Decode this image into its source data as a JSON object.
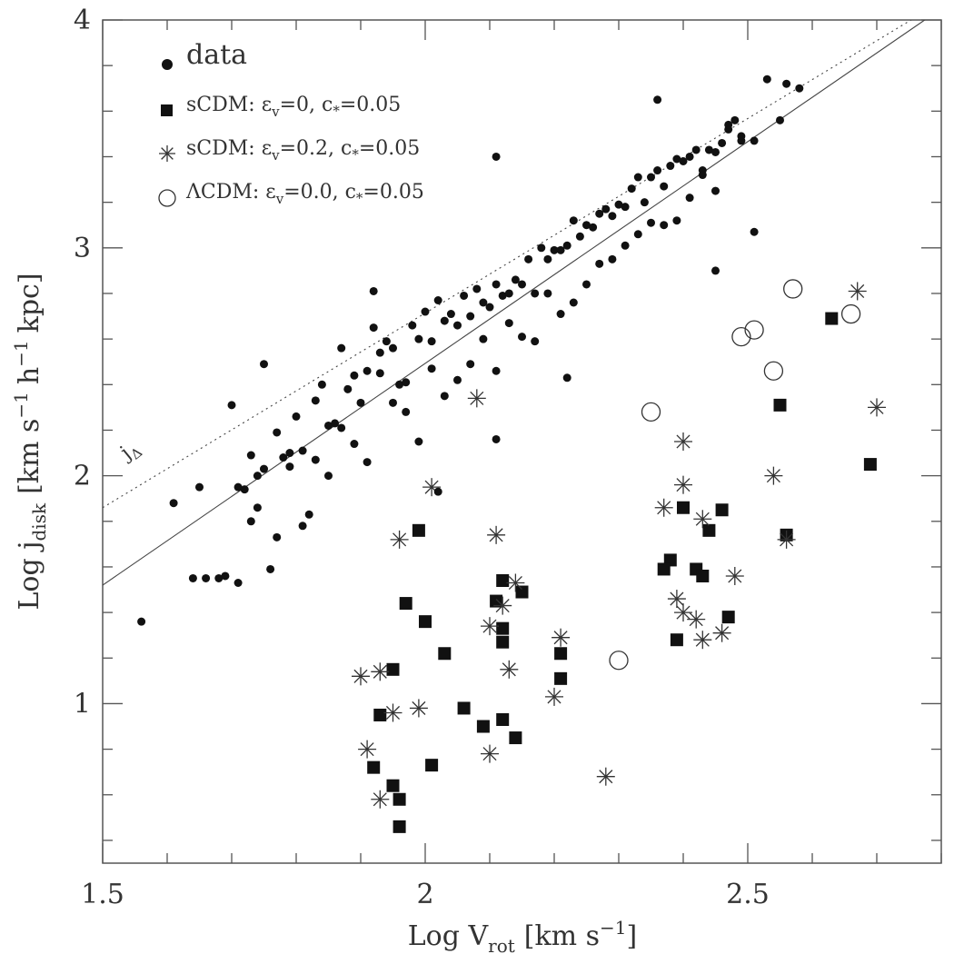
{
  "chart_data": {
    "type": "scatter",
    "xlabel": {
      "main": "Log V",
      "sub": "rot",
      "bracket_open": "[km s",
      "sup": "−1",
      "bracket_close": "]"
    },
    "ylabel": {
      "main": "Log j",
      "sub": "disk",
      "unit_a": "[km s",
      "sup_a": "−1",
      "unit_b": "h",
      "sup_b": "−1",
      "unit_c": "kpc]"
    },
    "xlim": [
      1.5,
      2.8
    ],
    "ylim": [
      0.3,
      4.0
    ],
    "x_ticks": [
      {
        "v": 1.5,
        "label": "1.5"
      },
      {
        "v": 2.0,
        "label": "2"
      },
      {
        "v": 2.5,
        "label": "2.5"
      }
    ],
    "y_ticks": [
      {
        "v": 1,
        "label": "1"
      },
      {
        "v": 2,
        "label": "2"
      },
      {
        "v": 3,
        "label": "3"
      },
      {
        "v": 4,
        "label": "4"
      }
    ],
    "x_minor_step": 0.1,
    "y_minor_step": 0.2,
    "grid": false,
    "legend_placement": "top-left",
    "legend": [
      {
        "marker": "dot",
        "label": "data"
      },
      {
        "marker": "square",
        "label_pre": "sCDM: ε",
        "label_sub": "v",
        "label_post": "=0,  c",
        "label_sub2": "*",
        "label_end": "=0.05"
      },
      {
        "marker": "star",
        "label_pre": "sCDM: ε",
        "label_sub": "v",
        "label_post": "=0.2,  c",
        "label_sub2": "*",
        "label_end": "=0.05"
      },
      {
        "marker": "circle",
        "label_pre": "ΛCDM: ε",
        "label_sub": "v",
        "label_post": "=0.0,  c",
        "label_sub2": "*",
        "label_end": "=0.05"
      }
    ],
    "lines": [
      {
        "style": "dotted",
        "label": "j",
        "label_sub": "Δ",
        "points": [
          [
            1.5,
            1.86
          ],
          [
            2.8,
            4.08
          ]
        ]
      },
      {
        "style": "solid",
        "points": [
          [
            1.5,
            1.52
          ],
          [
            2.8,
            4.05
          ]
        ]
      }
    ],
    "series": [
      {
        "name": "sCDM: εv=0, c*=0.05",
        "marker": "square",
        "x": [
          2.63,
          2.55,
          2.69,
          2.4,
          2.46,
          2.44,
          2.56,
          1.99,
          2.12,
          2.15,
          1.97,
          2.11,
          2.0,
          2.12,
          2.12,
          2.03,
          2.21,
          1.95,
          2.21,
          2.06,
          1.93,
          2.12,
          2.09,
          2.14,
          2.01,
          1.92,
          1.95,
          1.96,
          1.96,
          2.38,
          2.37,
          2.42,
          2.43,
          2.47,
          2.39
        ],
        "y": [
          2.69,
          2.31,
          2.05,
          1.86,
          1.85,
          1.76,
          1.74,
          1.76,
          1.54,
          1.49,
          1.44,
          1.45,
          1.36,
          1.33,
          1.27,
          1.22,
          1.22,
          1.15,
          1.11,
          0.98,
          0.95,
          0.93,
          0.9,
          0.85,
          0.73,
          0.72,
          0.64,
          0.58,
          0.46,
          1.63,
          1.59,
          1.59,
          1.56,
          1.38,
          1.28
        ]
      },
      {
        "name": "sCDM: εv=0.2, c*=0.05",
        "marker": "star",
        "x": [
          2.67,
          2.7,
          2.4,
          2.54,
          2.4,
          2.37,
          2.43,
          2.56,
          2.48,
          2.39,
          2.42,
          2.4,
          2.46,
          2.43,
          2.01,
          1.96,
          2.11,
          2.14,
          2.1,
          2.12,
          2.08,
          2.21,
          2.13,
          2.2,
          1.9,
          1.93,
          1.95,
          1.99,
          1.91,
          2.1,
          1.93,
          2.28
        ],
        "y": [
          2.81,
          2.3,
          2.15,
          2.0,
          1.96,
          1.86,
          1.81,
          1.72,
          1.56,
          1.46,
          1.37,
          1.4,
          1.31,
          1.28,
          1.95,
          1.72,
          1.74,
          1.53,
          1.34,
          1.43,
          2.34,
          1.29,
          1.15,
          1.03,
          1.12,
          1.14,
          0.96,
          0.98,
          0.8,
          0.78,
          0.58,
          0.68
        ]
      },
      {
        "name": "ΛCDM: εv=0.0, c*=0.05",
        "marker": "circle",
        "x": [
          2.57,
          2.66,
          2.51,
          2.49,
          2.54,
          2.35,
          2.3
        ],
        "y": [
          2.82,
          2.71,
          2.64,
          2.61,
          2.46,
          2.28,
          1.19
        ]
      },
      {
        "name": "data",
        "marker": "dot",
        "x": [
          1.56,
          1.61,
          1.64,
          1.65,
          1.66,
          1.68,
          1.7,
          1.71,
          1.72,
          1.73,
          1.74,
          1.75,
          1.76,
          1.77,
          1.78,
          1.79,
          1.8,
          1.81,
          1.82,
          1.83,
          1.84,
          1.85,
          1.86,
          1.87,
          1.88,
          1.89,
          1.9,
          1.91,
          1.92,
          1.93,
          1.94,
          1.95,
          1.96,
          1.97,
          1.98,
          1.99,
          2.0,
          2.01,
          2.02,
          2.03,
          2.04,
          2.05,
          2.06,
          2.07,
          2.08,
          2.09,
          2.1,
          2.11,
          2.12,
          2.13,
          2.14,
          2.15,
          2.16,
          2.17,
          2.18,
          2.19,
          2.2,
          2.21,
          2.22,
          2.23,
          2.24,
          2.25,
          2.26,
          2.27,
          2.28,
          2.29,
          2.3,
          2.31,
          2.32,
          2.33,
          2.34,
          2.35,
          2.36,
          2.37,
          2.38,
          2.39,
          2.4,
          2.41,
          2.42,
          2.43,
          2.44,
          2.45,
          2.46,
          2.47,
          2.48,
          2.49,
          2.51,
          2.53,
          2.55,
          2.56,
          2.58,
          1.69,
          1.71,
          1.73,
          1.75,
          1.77,
          1.79,
          1.81,
          1.83,
          1.85,
          1.87,
          1.89,
          1.91,
          1.93,
          1.95,
          1.97,
          1.99,
          2.01,
          2.03,
          2.05,
          2.07,
          2.09,
          2.11,
          2.13,
          2.15,
          2.17,
          2.19,
          2.21,
          2.23,
          2.25,
          2.27,
          2.29,
          2.31,
          2.33,
          2.35,
          2.37,
          2.39,
          2.41,
          2.43,
          2.45,
          2.47,
          2.11,
          2.02,
          1.92,
          2.22,
          2.45,
          2.51,
          2.49,
          2.36,
          1.74,
          2.11
        ],
        "y": [
          1.36,
          1.88,
          1.55,
          1.95,
          1.55,
          1.55,
          2.31,
          1.53,
          1.94,
          2.09,
          1.86,
          2.49,
          1.59,
          2.19,
          2.08,
          2.04,
          2.26,
          2.11,
          1.83,
          2.33,
          2.4,
          2.22,
          2.23,
          2.56,
          2.38,
          2.44,
          2.32,
          2.46,
          2.65,
          2.54,
          2.59,
          2.56,
          2.4,
          2.41,
          2.66,
          2.6,
          2.72,
          2.59,
          2.77,
          2.68,
          2.71,
          2.66,
          2.79,
          2.7,
          2.82,
          2.76,
          2.74,
          2.84,
          2.79,
          2.8,
          2.86,
          2.84,
          2.95,
          2.8,
          3.0,
          2.95,
          2.99,
          2.99,
          3.01,
          3.12,
          3.05,
          3.1,
          3.09,
          3.15,
          3.17,
          3.14,
          3.19,
          3.18,
          3.26,
          3.31,
          3.2,
          3.31,
          3.34,
          3.27,
          3.36,
          3.39,
          3.38,
          3.4,
          3.43,
          3.34,
          3.43,
          3.42,
          3.46,
          3.52,
          3.56,
          3.47,
          3.07,
          3.74,
          3.56,
          3.72,
          3.7,
          1.56,
          1.95,
          1.8,
          2.03,
          1.73,
          2.1,
          1.78,
          2.07,
          2.0,
          2.21,
          2.14,
          2.06,
          2.45,
          2.32,
          2.28,
          2.15,
          2.47,
          2.35,
          2.42,
          2.49,
          2.6,
          2.46,
          2.67,
          2.61,
          2.59,
          2.8,
          2.71,
          2.76,
          2.84,
          2.93,
          2.95,
          3.01,
          3.06,
          3.11,
          3.1,
          3.12,
          3.22,
          3.32,
          3.25,
          3.54,
          2.16,
          1.93,
          2.81,
          2.43,
          2.9,
          3.47,
          3.49,
          3.65,
          2.0,
          3.4
        ]
      }
    ]
  }
}
